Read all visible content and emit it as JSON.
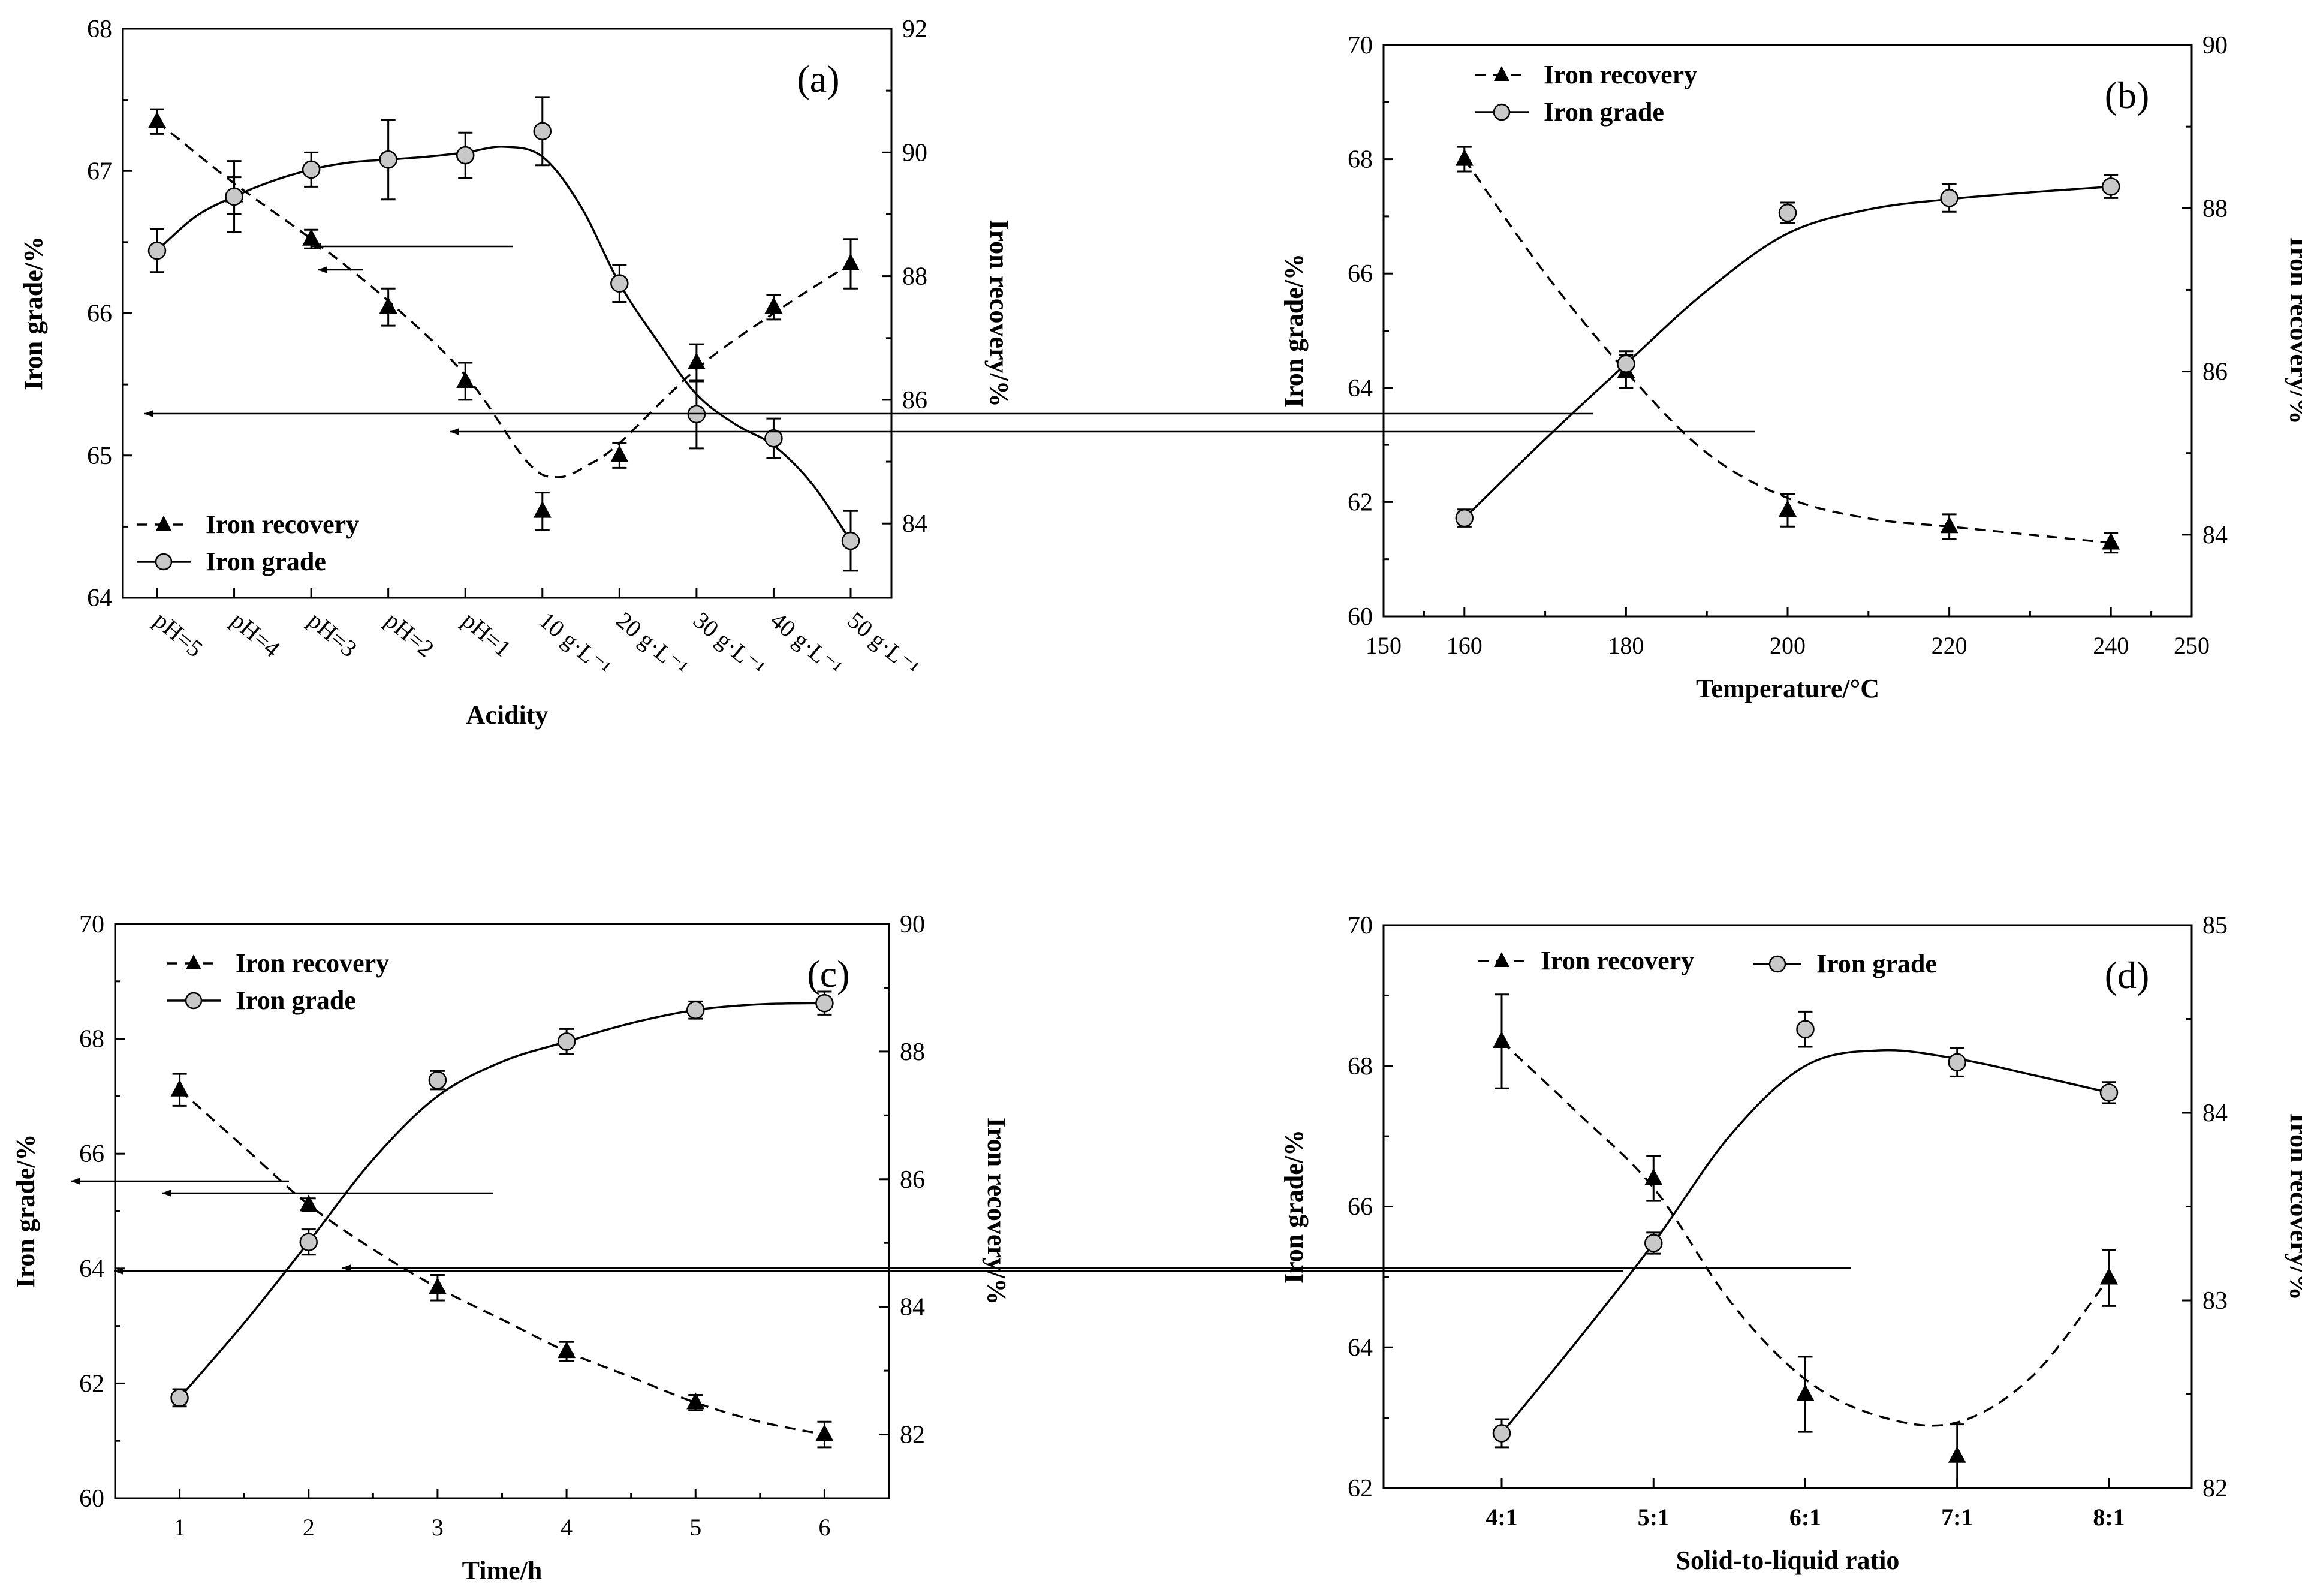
{
  "chart_data": [
    {
      "type": "line",
      "panel": "(a)",
      "xlabel": "Acidity",
      "ylabel_left": "Iron grade/%",
      "ylabel_right": "Iron recovery/%",
      "categories": [
        "pH=5",
        "pH=4",
        "pH=3",
        "pH=2",
        "pH=1",
        "10 g·L⁻¹",
        "20 g·L⁻¹",
        "30 g·L⁻¹",
        "40 g·L⁻¹",
        "50 g·L⁻¹"
      ],
      "ylim_left": [
        64,
        68
      ],
      "yticks_left": [
        64,
        65,
        66,
        67,
        68
      ],
      "ylim_right": [
        82.8,
        92
      ],
      "yticks_right": [
        84,
        86,
        88,
        90,
        92
      ],
      "legend": [
        "Iron recovery",
        "Iron grade"
      ],
      "legend_position": "bottom-left",
      "series": [
        {
          "name": "Iron recovery",
          "axis": "right",
          "style": "dashed",
          "marker": "triangle",
          "values": [
            90.5,
            89.3,
            88.6,
            87.5,
            86.3,
            84.2,
            85.1,
            86.6,
            87.5,
            88.2
          ],
          "errors": [
            0.2,
            0.3,
            0.15,
            0.3,
            0.3,
            0.3,
            0.2,
            0.3,
            0.2,
            0.4
          ],
          "curve": [
            [
              0,
              90.5
            ],
            [
              1,
              89.5
            ],
            [
              2,
              88.6
            ],
            [
              3,
              87.6
            ],
            [
              4,
              86.4
            ],
            [
              4.8,
              85.0
            ],
            [
              5.2,
              84.75
            ],
            [
              5.6,
              84.95
            ],
            [
              6,
              85.3
            ],
            [
              7,
              86.5
            ],
            [
              8,
              87.4
            ],
            [
              9,
              88.2
            ]
          ]
        },
        {
          "name": "Iron grade",
          "axis": "left",
          "style": "solid",
          "marker": "circle",
          "values": [
            66.44,
            66.82,
            67.01,
            67.08,
            67.11,
            67.28,
            66.21,
            65.29,
            65.12,
            64.4
          ],
          "errors": [
            0.15,
            0.25,
            0.12,
            0.28,
            0.16,
            0.24,
            0.13,
            0.24,
            0.14,
            0.21
          ],
          "curve": [
            [
              0,
              66.44
            ],
            [
              0.5,
              66.68
            ],
            [
              1,
              66.82
            ],
            [
              1.5,
              66.93
            ],
            [
              2,
              67.01
            ],
            [
              2.5,
              67.06
            ],
            [
              3,
              67.08
            ],
            [
              3.5,
              67.1
            ],
            [
              4,
              67.13
            ],
            [
              4.5,
              67.17
            ],
            [
              5,
              67.1
            ],
            [
              5.5,
              66.75
            ],
            [
              6,
              66.21
            ],
            [
              6.5,
              65.8
            ],
            [
              7,
              65.43
            ],
            [
              7.5,
              65.22
            ],
            [
              8,
              65.07
            ],
            [
              8.5,
              64.8
            ],
            [
              9,
              64.4
            ]
          ]
        }
      ],
      "annotations": [
        "arrow-left toward Iron grade axis",
        "arrow-right toward Iron recovery axis"
      ]
    },
    {
      "type": "line",
      "panel": "(b)",
      "xlabel": "Temperature/°C",
      "ylabel_left": "Iron grade/%",
      "ylabel_right": "Iron recovery/%",
      "xlim": [
        150,
        250
      ],
      "xticks": [
        150,
        160,
        180,
        200,
        220,
        240,
        250
      ],
      "ylim_left": [
        60,
        70
      ],
      "yticks_left": [
        60,
        62,
        64,
        66,
        68,
        70
      ],
      "ylim_right": [
        83,
        90
      ],
      "yticks_right": [
        84,
        86,
        88,
        90
      ],
      "legend": [
        "Iron recovery",
        "Iron grade"
      ],
      "legend_position": "top-left",
      "series": [
        {
          "name": "Iron recovery",
          "axis": "right",
          "style": "dashed",
          "marker": "triangle",
          "x": [
            160,
            180,
            200,
            220,
            240
          ],
          "values": [
            88.6,
            86.0,
            84.3,
            84.1,
            83.9
          ],
          "errors": [
            0.15,
            0.2,
            0.2,
            0.15,
            0.12
          ],
          "curve": [
            [
              160,
              88.6
            ],
            [
              170,
              87.2
            ],
            [
              180,
              86.0
            ],
            [
              190,
              85.0
            ],
            [
              200,
              84.45
            ],
            [
              210,
              84.2
            ],
            [
              220,
              84.1
            ],
            [
              230,
              84.0
            ],
            [
              240,
              83.9
            ]
          ]
        },
        {
          "name": "Iron grade",
          "axis": "left",
          "style": "solid",
          "marker": "circle",
          "x": [
            160,
            180,
            200,
            220,
            240
          ],
          "values": [
            61.72,
            64.42,
            67.06,
            67.32,
            67.52
          ],
          "errors": [
            0.15,
            0.22,
            0.18,
            0.24,
            0.2
          ],
          "curve": [
            [
              160,
              61.72
            ],
            [
              170,
              63.1
            ],
            [
              180,
              64.42
            ],
            [
              190,
              65.7
            ],
            [
              200,
              66.7
            ],
            [
              210,
              67.12
            ],
            [
              220,
              67.3
            ],
            [
              230,
              67.42
            ],
            [
              240,
              67.52
            ]
          ]
        }
      ],
      "annotations": [
        "arrow-left toward Iron grade axis",
        "arrow-right toward Iron recovery axis"
      ]
    },
    {
      "type": "line",
      "panel": "(c)",
      "xlabel": "Time/h",
      "ylabel_left": "Iron grade/%",
      "ylabel_right": "Iron recovery/%",
      "xlim": [
        0.5,
        6.5
      ],
      "xticks": [
        1,
        2,
        3,
        4,
        5,
        6
      ],
      "ylim_left": [
        60,
        70
      ],
      "yticks_left": [
        60,
        62,
        64,
        66,
        68,
        70
      ],
      "ylim_right": [
        81,
        90
      ],
      "yticks_right": [
        82,
        84,
        86,
        88,
        90
      ],
      "legend": [
        "Iron recovery",
        "Iron grade"
      ],
      "legend_position": "top-left",
      "series": [
        {
          "name": "Iron recovery",
          "axis": "right",
          "style": "dashed",
          "marker": "triangle",
          "x": [
            1,
            2,
            3,
            4,
            5,
            6
          ],
          "values": [
            87.4,
            85.6,
            84.3,
            83.3,
            82.5,
            82.0
          ],
          "errors": [
            0.25,
            0.1,
            0.2,
            0.15,
            0.12,
            0.2
          ],
          "curve": [
            [
              1,
              87.4
            ],
            [
              1.5,
              86.5
            ],
            [
              2,
              85.6
            ],
            [
              2.5,
              84.9
            ],
            [
              3,
              84.3
            ],
            [
              3.5,
              83.8
            ],
            [
              4,
              83.3
            ],
            [
              4.5,
              82.9
            ],
            [
              5,
              82.5
            ],
            [
              5.5,
              82.2
            ],
            [
              6,
              82.0
            ]
          ]
        },
        {
          "name": "Iron grade",
          "axis": "left",
          "style": "solid",
          "marker": "circle",
          "x": [
            1,
            2,
            3,
            4,
            5,
            6
          ],
          "values": [
            61.75,
            64.46,
            67.28,
            67.95,
            68.5,
            68.62
          ],
          "errors": [
            0.15,
            0.22,
            0.16,
            0.22,
            0.15,
            0.2
          ],
          "curve": [
            [
              1,
              61.75
            ],
            [
              1.5,
              63.05
            ],
            [
              2,
              64.46
            ],
            [
              2.5,
              65.9
            ],
            [
              3,
              67.0
            ],
            [
              3.5,
              67.6
            ],
            [
              4,
              67.95
            ],
            [
              4.5,
              68.27
            ],
            [
              5,
              68.5
            ],
            [
              5.5,
              68.6
            ],
            [
              6,
              68.62
            ]
          ]
        }
      ],
      "annotations": [
        "arrow-left toward Iron grade axis",
        "arrow-right toward Iron recovery axis"
      ]
    },
    {
      "type": "line",
      "panel": "(d)",
      "xlabel": "Solid-to-liquid ratio",
      "ylabel_left": "Iron grade/%",
      "ylabel_right": "Iron recovery/%",
      "categories": [
        "4:1",
        "5:1",
        "6:1",
        "7:1",
        "8:1"
      ],
      "ylim_left": [
        62,
        70
      ],
      "yticks_left": [
        62,
        64,
        66,
        68,
        70
      ],
      "ylim_right": [
        82,
        85
      ],
      "yticks_right": [
        82,
        83,
        84,
        85
      ],
      "legend": [
        "Iron recovery",
        "Iron grade"
      ],
      "legend_position": "top",
      "series": [
        {
          "name": "Iron recovery",
          "axis": "right",
          "style": "dashed",
          "marker": "triangle",
          "values": [
            84.38,
            83.65,
            82.5,
            82.17,
            83.12
          ],
          "errors": [
            0.25,
            0.12,
            0.2,
            0.17,
            0.15
          ],
          "curve": [
            [
              0,
              84.38
            ],
            [
              0.5,
              84.0
            ],
            [
              1,
              83.6
            ],
            [
              1.5,
              83.0
            ],
            [
              2,
              82.58
            ],
            [
              2.5,
              82.38
            ],
            [
              3,
              82.35
            ],
            [
              3.5,
              82.6
            ],
            [
              4,
              83.12
            ]
          ]
        },
        {
          "name": "Iron grade",
          "axis": "left",
          "style": "solid",
          "marker": "circle",
          "values": [
            62.78,
            65.48,
            68.52,
            68.05,
            67.62
          ],
          "errors": [
            0.2,
            0.15,
            0.25,
            0.2,
            0.15
          ],
          "curve": [
            [
              0,
              62.78
            ],
            [
              0.5,
              64.1
            ],
            [
              1,
              65.48
            ],
            [
              1.5,
              67.0
            ],
            [
              2,
              68.0
            ],
            [
              2.5,
              68.22
            ],
            [
              3,
              68.1
            ],
            [
              3.5,
              67.87
            ],
            [
              4,
              67.62
            ]
          ]
        }
      ],
      "annotations": [
        "arrow-left toward Iron grade axis",
        "arrow-right toward Iron recovery axis"
      ]
    }
  ]
}
